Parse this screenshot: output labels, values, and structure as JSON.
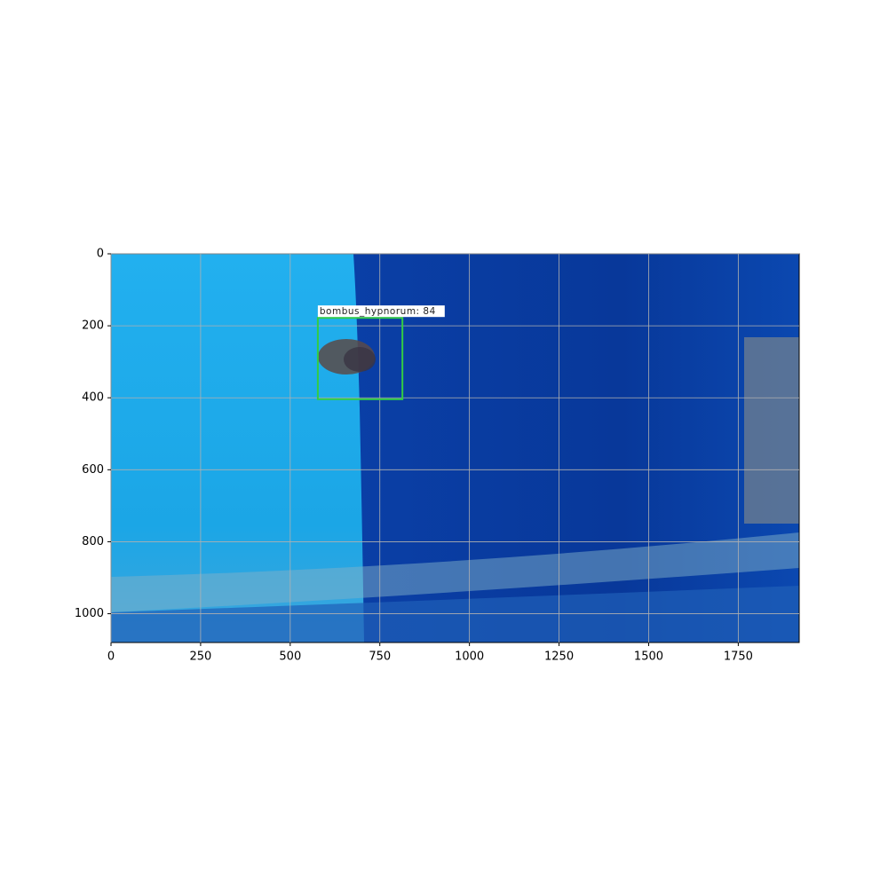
{
  "chart_data": {
    "type": "image",
    "xlim": [
      0,
      1920
    ],
    "ylim": [
      1080,
      0
    ],
    "xticks": [
      0,
      250,
      500,
      750,
      1000,
      1250,
      1500,
      1750
    ],
    "yticks": [
      0,
      200,
      400,
      600,
      800,
      1000
    ],
    "grid": true,
    "detections": [
      {
        "label": "bombus_hypnorum: 84",
        "color": "#33cc44",
        "x": [
          577,
          813
        ],
        "y": [
          178,
          404
        ]
      }
    ]
  }
}
